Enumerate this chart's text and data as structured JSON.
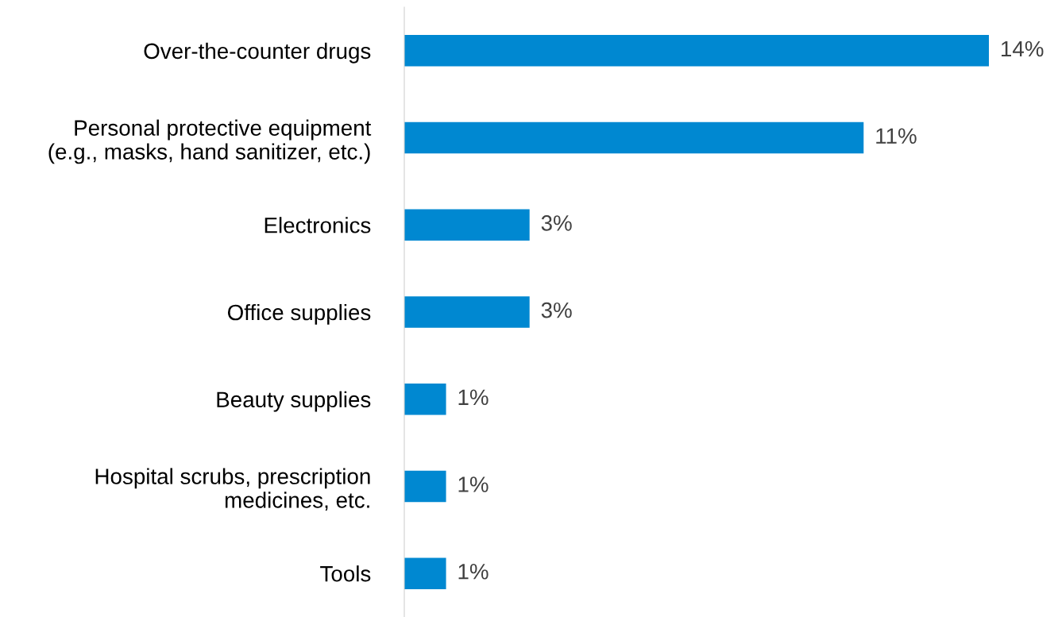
{
  "chart_data": {
    "type": "bar",
    "orientation": "horizontal",
    "categories": [
      "Over-the-counter drugs",
      "Personal protective equipment\n(e.g., masks, hand sanitizer, etc.)",
      "Electronics",
      "Office supplies",
      "Beauty supplies",
      "Hospital scrubs, prescription\nmedicines, etc.",
      "Tools"
    ],
    "values": [
      14,
      11,
      3,
      3,
      1,
      1,
      1
    ],
    "value_labels": [
      "14%",
      "11%",
      "3%",
      "3%",
      "1%",
      "1%",
      "1%"
    ],
    "color": "#0088d1",
    "grid": false,
    "legend": false,
    "tick_labels": "y"
  }
}
